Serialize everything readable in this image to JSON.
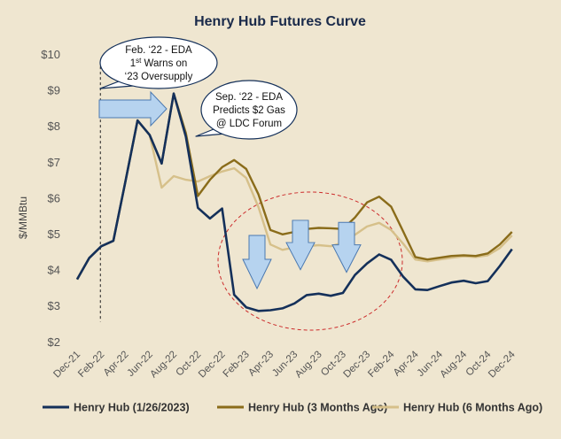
{
  "chart_data": {
    "type": "line",
    "title": "Henry Hub Futures Curve",
    "ylabel": "$/MMBtu",
    "xlabel": "",
    "ylim": [
      2,
      10
    ],
    "yticks": [
      "$2",
      "$3",
      "$4",
      "$5",
      "$6",
      "$7",
      "$8",
      "$9",
      "$10"
    ],
    "ytick_values": [
      2,
      3,
      4,
      5,
      6,
      7,
      8,
      9,
      10
    ],
    "x_tick_labels": [
      "Dec-21",
      "Feb-22",
      "Apr-22",
      "Jun-22",
      "Aug-22",
      "Oct-22",
      "Dec-22",
      "Feb-23",
      "Apr-23",
      "Jun-23",
      "Aug-23",
      "Oct-23",
      "Dec-23",
      "Feb-24",
      "Apr-24",
      "Jun-24",
      "Aug-24",
      "Oct-24",
      "Dec-24"
    ],
    "x": [
      "Dec-21",
      "Jan-22",
      "Feb-22",
      "Mar-22",
      "Apr-22",
      "May-22",
      "Jun-22",
      "Jul-22",
      "Aug-22",
      "Sep-22",
      "Oct-22",
      "Nov-22",
      "Dec-22",
      "Jan-23",
      "Feb-23",
      "Mar-23",
      "Apr-23",
      "May-23",
      "Jun-23",
      "Jul-23",
      "Aug-23",
      "Sep-23",
      "Oct-23",
      "Nov-23",
      "Dec-23",
      "Jan-24",
      "Feb-24",
      "Mar-24",
      "Apr-24",
      "May-24",
      "Jun-24",
      "Jul-24",
      "Aug-24",
      "Sep-24",
      "Oct-24",
      "Nov-24",
      "Dec-24"
    ],
    "shared_prefix_end": "Jun-22",
    "series": [
      {
        "name": "Henry Hub (1/26/2023)",
        "color": "#14305a",
        "values": [
          3.73,
          4.32,
          4.65,
          4.8,
          6.45,
          8.15,
          7.75,
          6.95,
          8.9,
          7.7,
          5.72,
          5.42,
          5.7,
          3.3,
          2.95,
          2.85,
          2.87,
          2.92,
          3.06,
          3.29,
          3.33,
          3.27,
          3.35,
          3.85,
          4.17,
          4.42,
          4.27,
          3.8,
          3.45,
          3.43,
          3.54,
          3.64,
          3.69,
          3.62,
          3.68,
          4.1,
          4.57
        ]
      },
      {
        "name": "Henry Hub (3 Months Ago)",
        "color": "#8a6c1a",
        "values": [
          3.73,
          4.32,
          4.65,
          4.8,
          6.45,
          8.15,
          7.75,
          6.95,
          8.9,
          7.8,
          6.05,
          6.5,
          6.85,
          7.05,
          6.8,
          6.1,
          5.1,
          4.98,
          5.05,
          5.13,
          5.16,
          5.15,
          5.13,
          5.45,
          5.87,
          6.03,
          5.75,
          5.06,
          4.35,
          4.28,
          4.33,
          4.38,
          4.4,
          4.38,
          4.45,
          4.7,
          5.05
        ]
      },
      {
        "name": "Henry Hub (6 Months Ago)",
        "color": "#d6c08a",
        "values": [
          3.73,
          4.32,
          4.65,
          4.8,
          6.45,
          8.15,
          7.75,
          6.28,
          6.6,
          6.5,
          6.45,
          6.6,
          6.73,
          6.82,
          6.55,
          5.75,
          4.7,
          4.55,
          4.62,
          4.65,
          4.68,
          4.65,
          4.75,
          4.97,
          5.2,
          5.3,
          5.1,
          4.72,
          4.28,
          4.23,
          4.28,
          4.33,
          4.37,
          4.35,
          4.4,
          4.6,
          4.95
        ]
      }
    ],
    "annotations": [
      {
        "lines": [
          "Feb. ‘22 - EDA",
          "1st Warns on",
          "‘23 Oversupply"
        ],
        "superscript_word": "st"
      },
      {
        "lines": [
          "Sep. ‘22 - EDA",
          "Predicts $2 Gas",
          "@ LDC Forum"
        ]
      }
    ],
    "colors": {
      "plot_background": "#efe6d0",
      "bubble_fill": "#ffffff",
      "bubble_stroke": "#14305a",
      "arrow_fill": "#b6d3ef",
      "arrow_stroke": "#4a78b0",
      "ellipse_stroke": "#cc2b2b",
      "reference_line": "#222222"
    },
    "grid": false,
    "legend_position": "bottom"
  }
}
